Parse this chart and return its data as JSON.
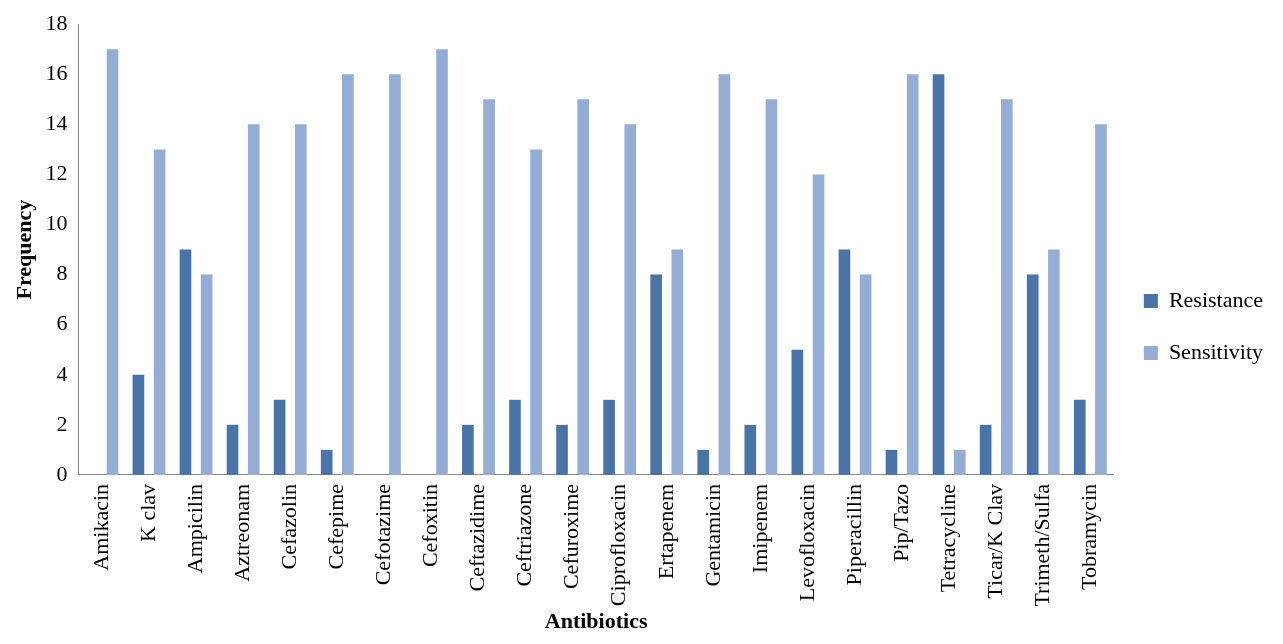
{
  "chart_data": {
    "type": "bar",
    "xlabel": "Antibiotics",
    "ylabel": "Frequency",
    "categories": [
      "Amikacin",
      "K clav",
      "Ampicilin",
      "Aztreonam",
      "Cefazolin",
      "Cefepime",
      "Cefotazime",
      "Cefoxitin",
      "Ceftazidime",
      "Ceftriazone",
      "Cefuroxime",
      "Ciprofloxacin",
      "Ertapenem",
      "Gentamicin",
      "Imipenem",
      "Levofloxacin",
      "Piperacillin",
      "Pip/Tazo",
      "Tetracycline",
      "Ticar/K Clav",
      "Trimeth/Sulfa",
      "Tobramycin"
    ],
    "series": [
      {
        "name": "Resistance",
        "color": "#4a73a8",
        "values": [
          0,
          4,
          9,
          2,
          3,
          1,
          0,
          0,
          2,
          3,
          2,
          3,
          8,
          1,
          2,
          5,
          9,
          1,
          16,
          2,
          8,
          3
        ]
      },
      {
        "name": "Sensitivity",
        "color": "#95acd4",
        "values": [
          17,
          13,
          8,
          14,
          14,
          16,
          16,
          17,
          15,
          13,
          15,
          14,
          9,
          16,
          15,
          12,
          8,
          16,
          1,
          15,
          9,
          14
        ]
      }
    ],
    "ylim": [
      0,
      18
    ],
    "yticks": [
      0,
      2,
      4,
      6,
      8,
      10,
      12,
      14,
      16,
      18
    ],
    "grid": false,
    "legend": "right"
  }
}
